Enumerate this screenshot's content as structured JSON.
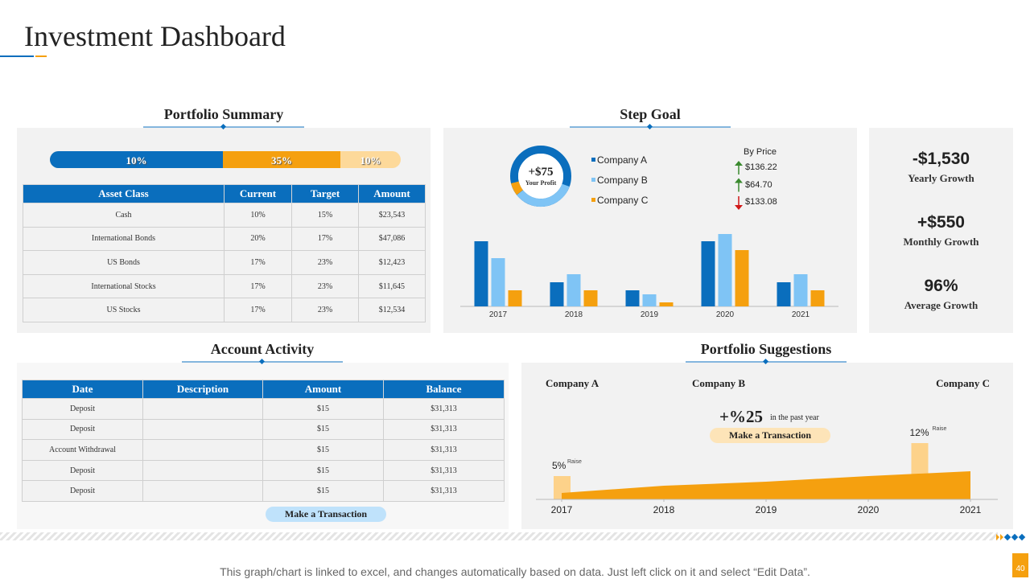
{
  "header": {
    "title": "Investment Dashboard"
  },
  "portfolio_summary": {
    "title": "Portfolio Summary",
    "allocation_labels": [
      "10%",
      "35%",
      "10%"
    ],
    "table": {
      "columns": [
        "Asset Class",
        "Current",
        "Target",
        "Amount"
      ],
      "rows": [
        [
          "Cash",
          "10%",
          "15%",
          "$23,543"
        ],
        [
          "International Bonds",
          "20%",
          "17%",
          "$47,086"
        ],
        [
          "US Bonds",
          "17%",
          "23%",
          "$12,423"
        ],
        [
          "International Stocks",
          "17%",
          "23%",
          "$11,645"
        ],
        [
          "US Stocks",
          "17%",
          "23%",
          "$12,534"
        ]
      ]
    }
  },
  "step_goal": {
    "title": "Step Goal",
    "profit": "+$75",
    "profit_label": "Your Profit",
    "by_price": {
      "title": "By Price",
      "items": [
        {
          "label": "$136.22",
          "direction": "up"
        },
        {
          "label": "$64.70",
          "direction": "up"
        },
        {
          "label": "$133.08",
          "direction": "down"
        }
      ]
    },
    "chart_data": {
      "type": "bar",
      "categories": [
        "2017",
        "2018",
        "2019",
        "2020",
        "2021"
      ],
      "series": [
        {
          "name": "Company A",
          "color": "#0a6ebd",
          "values": [
            81,
            30,
            20,
            81,
            30
          ]
        },
        {
          "name": "Company B",
          "color": "#7fc4f5",
          "values": [
            60,
            40,
            15,
            90,
            40
          ]
        },
        {
          "name": "Company C",
          "color": "#f5a00f",
          "values": [
            20,
            20,
            5,
            70,
            20
          ]
        }
      ],
      "ylim": [
        0,
        100
      ]
    }
  },
  "kpis": [
    {
      "value": "-$1,530",
      "label": "Yearly Growth"
    },
    {
      "value": "+$550",
      "label": "Monthly Growth"
    },
    {
      "value": "96%",
      "label": "Average Growth"
    }
  ],
  "account_activity": {
    "title": "Account Activity",
    "table": {
      "columns": [
        "Date",
        "Description",
        "Amount",
        "Balance"
      ],
      "rows": [
        [
          "Deposit",
          "",
          "$15",
          "$31,313"
        ],
        [
          "Deposit",
          "",
          "$15",
          "$31,313"
        ],
        [
          "Account Withdrawal",
          "",
          "$15",
          "$31,313"
        ],
        [
          "Deposit",
          "",
          "$15",
          "$31,313"
        ],
        [
          "Deposit",
          "",
          "$15",
          "$31,313"
        ]
      ]
    },
    "button": "Make a Transaction"
  },
  "portfolio_suggestions": {
    "title": "Portfolio Suggestions",
    "companies": [
      "Company A",
      "Company B",
      "Company C"
    ],
    "headline": "+%25",
    "headline_note": "in the past year",
    "button": "Make a Transaction",
    "chart_data": {
      "type": "area",
      "x": [
        2017,
        2018,
        2019,
        2020,
        2021
      ],
      "values": [
        8,
        17,
        22,
        29,
        35
      ],
      "color": "#f5a00f",
      "xlim": [
        2017,
        2021
      ],
      "xticks": [
        2017,
        2018,
        2019,
        2020,
        2021
      ],
      "ylim": [
        0,
        80
      ],
      "highlight_color": "#fdd28a",
      "highlights": [
        {
          "x": 2017,
          "value": 29,
          "label": "5%",
          "note": "Raise"
        },
        {
          "x": 2020.5,
          "value": 70,
          "label": "12%",
          "note": "Raise"
        }
      ]
    }
  },
  "footer": {
    "note": "This graph/chart is linked to excel, and changes automatically based on data. Just left click on it and select “Edit Data”.",
    "page": "40"
  }
}
